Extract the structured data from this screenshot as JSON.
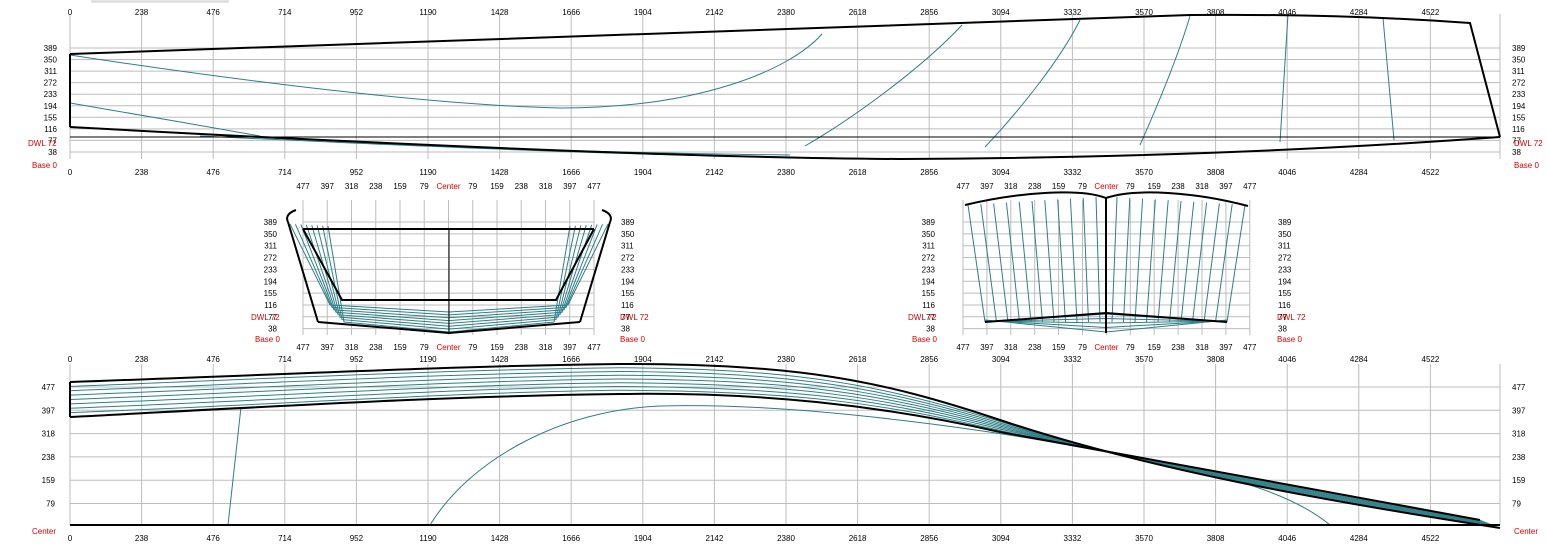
{
  "profile_view": {
    "x_ticks": [
      "0",
      "238",
      "476",
      "714",
      "952",
      "1190",
      "1428",
      "1666",
      "1904",
      "2142",
      "2380",
      "2618",
      "2856",
      "3094",
      "3332",
      "3570",
      "3808",
      "4046",
      "4284",
      "4522"
    ],
    "y_ticks": [
      "389",
      "350",
      "311",
      "272",
      "233",
      "194",
      "155",
      "116",
      "77",
      "38"
    ],
    "dwl_label": "DWL 72",
    "base_label": "Base 0"
  },
  "body_plan_left": {
    "x_ticks": [
      "477",
      "397",
      "318",
      "238",
      "159",
      "79",
      "Center",
      "79",
      "159",
      "238",
      "318",
      "397",
      "477"
    ],
    "y_ticks": [
      "389",
      "350",
      "311",
      "272",
      "233",
      "194",
      "155",
      "116",
      "77",
      "38"
    ],
    "dwl_label": "DWL 72",
    "base_label": "Base 0"
  },
  "body_plan_right": {
    "x_ticks": [
      "477",
      "397",
      "318",
      "238",
      "159",
      "79",
      "Center",
      "79",
      "159",
      "238",
      "318",
      "397",
      "477"
    ],
    "y_ticks": [
      "389",
      "350",
      "311",
      "272",
      "233",
      "194",
      "155",
      "116",
      "77",
      "38"
    ],
    "dwl_label": "DWL 72",
    "base_label": "Base 0"
  },
  "plan_view": {
    "x_ticks": [
      "0",
      "238",
      "476",
      "714",
      "952",
      "1190",
      "1428",
      "1666",
      "1904",
      "2142",
      "2380",
      "2618",
      "2856",
      "3094",
      "3332",
      "3570",
      "3808",
      "4046",
      "4284",
      "4522"
    ],
    "y_ticks": [
      "477",
      "397",
      "318",
      "238",
      "159",
      "79"
    ],
    "center_label": "Center"
  },
  "colors": {
    "line": "#2e7f86",
    "label_red": "#d40000",
    "grid": "#bdbdbd"
  }
}
